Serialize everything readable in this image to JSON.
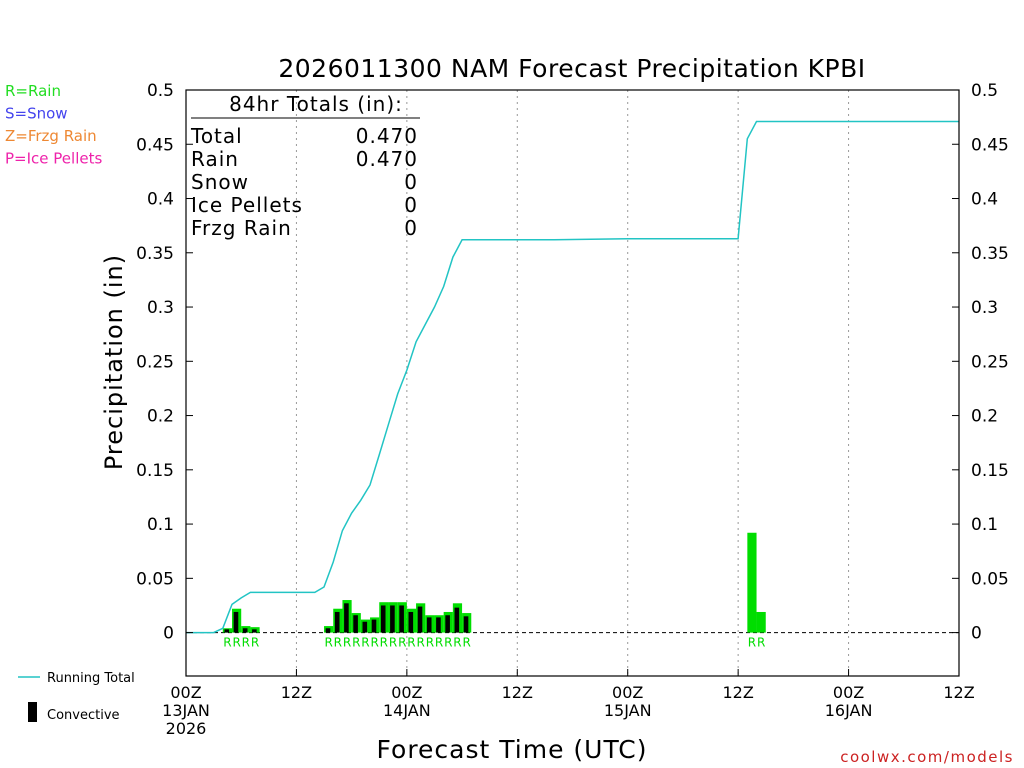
{
  "chart_data": {
    "type": "bar",
    "title": "2026011300 NAM Forecast Precipitation KPBI",
    "xlabel": "Forecast Time (UTC)",
    "ylabel": "Precipitation (in)",
    "ylim": [
      -0.04,
      0.5
    ],
    "y_ticks": [
      0,
      0.05,
      0.1,
      0.15,
      0.2,
      0.25,
      0.3,
      0.35,
      0.4,
      0.45,
      0.5
    ],
    "y_tick_labels": [
      "0",
      "0.05",
      "0.1",
      "0.15",
      "0.2",
      "0.25",
      "0.3",
      "0.35",
      "0.4",
      "0.45",
      "0.5"
    ],
    "x_range_hours": [
      0,
      84
    ],
    "x_ticks": [
      {
        "hour": 0,
        "lines": [
          "00Z",
          "13JAN",
          "2026"
        ]
      },
      {
        "hour": 12,
        "lines": [
          "12Z"
        ]
      },
      {
        "hour": 24,
        "lines": [
          "00Z",
          "14JAN"
        ]
      },
      {
        "hour": 36,
        "lines": [
          "12Z"
        ]
      },
      {
        "hour": 48,
        "lines": [
          "00Z",
          "15JAN"
        ]
      },
      {
        "hour": 60,
        "lines": [
          "12Z"
        ]
      },
      {
        "hour": 72,
        "lines": [
          "00Z",
          "16JAN"
        ]
      },
      {
        "hour": 84,
        "lines": [
          "12Z"
        ]
      }
    ],
    "grid_hours": [
      12,
      24,
      36,
      48,
      60,
      72
    ],
    "bar_hour_width": 1,
    "bars": [
      {
        "hour": 4,
        "value": 0.004,
        "convective": 0.003,
        "type": "R"
      },
      {
        "hour": 5,
        "value": 0.022,
        "convective": 0.019,
        "type": "R"
      },
      {
        "hour": 6,
        "value": 0.006,
        "convective": 0.004,
        "type": "R"
      },
      {
        "hour": 7,
        "value": 0.005,
        "convective": 0.003,
        "type": "R"
      },
      {
        "hour": 15,
        "value": 0.006,
        "convective": 0.004,
        "type": "R"
      },
      {
        "hour": 16,
        "value": 0.022,
        "convective": 0.019,
        "type": "R"
      },
      {
        "hour": 17,
        "value": 0.03,
        "convective": 0.027,
        "type": "R"
      },
      {
        "hour": 18,
        "value": 0.018,
        "convective": 0.016,
        "type": "R"
      },
      {
        "hour": 19,
        "value": 0.012,
        "convective": 0.01,
        "type": "R"
      },
      {
        "hour": 20,
        "value": 0.014,
        "convective": 0.012,
        "type": "R"
      },
      {
        "hour": 21,
        "value": 0.028,
        "convective": 0.025,
        "type": "R"
      },
      {
        "hour": 22,
        "value": 0.028,
        "convective": 0.025,
        "type": "R"
      },
      {
        "hour": 23,
        "value": 0.028,
        "convective": 0.025,
        "type": "R"
      },
      {
        "hour": 24,
        "value": 0.022,
        "convective": 0.019,
        "type": "R"
      },
      {
        "hour": 25,
        "value": 0.027,
        "convective": 0.024,
        "type": "R"
      },
      {
        "hour": 26,
        "value": 0.016,
        "convective": 0.014,
        "type": "R"
      },
      {
        "hour": 27,
        "value": 0.016,
        "convective": 0.014,
        "type": "R"
      },
      {
        "hour": 28,
        "value": 0.019,
        "convective": 0.016,
        "type": "R"
      },
      {
        "hour": 29,
        "value": 0.027,
        "convective": 0.023,
        "type": "R"
      },
      {
        "hour": 30,
        "value": 0.018,
        "convective": 0.015,
        "type": "R"
      },
      {
        "hour": 61,
        "value": 0.092,
        "convective": 0,
        "type": "R"
      },
      {
        "hour": 62,
        "value": 0.019,
        "convective": 0,
        "type": "R"
      }
    ],
    "running_total": {
      "hours": [
        0,
        1,
        2,
        3,
        4,
        5,
        6,
        7,
        8,
        9,
        10,
        11,
        12,
        13,
        14,
        15,
        16,
        17,
        18,
        19,
        20,
        21,
        22,
        23,
        24,
        25,
        26,
        27,
        28,
        29,
        30,
        31,
        32,
        40,
        48,
        56,
        60,
        61,
        62,
        63,
        64,
        72,
        84
      ],
      "values": [
        0,
        0,
        0,
        0,
        0.004,
        0.026,
        0.032,
        0.037,
        0.037,
        0.037,
        0.037,
        0.037,
        0.037,
        0.037,
        0.037,
        0.042,
        0.065,
        0.094,
        0.11,
        0.122,
        0.136,
        0.164,
        0.192,
        0.22,
        0.242,
        0.268,
        0.284,
        0.3,
        0.319,
        0.346,
        0.362,
        0.362,
        0.362,
        0.362,
        0.363,
        0.363,
        0.363,
        0.455,
        0.471,
        0.471,
        0.471,
        0.471,
        0.471
      ]
    },
    "ptype_marks": [
      {
        "hour": 4,
        "label": "R"
      },
      {
        "hour": 5,
        "label": "R"
      },
      {
        "hour": 6,
        "label": "R"
      },
      {
        "hour": 7,
        "label": "R"
      },
      {
        "hour": 15,
        "label": "R"
      },
      {
        "hour": 16,
        "label": "R"
      },
      {
        "hour": 17,
        "label": "R"
      },
      {
        "hour": 18,
        "label": "R"
      },
      {
        "hour": 19,
        "label": "R"
      },
      {
        "hour": 20,
        "label": "R"
      },
      {
        "hour": 21,
        "label": "R"
      },
      {
        "hour": 22,
        "label": "R"
      },
      {
        "hour": 23,
        "label": "R"
      },
      {
        "hour": 24,
        "label": "R"
      },
      {
        "hour": 25,
        "label": "R"
      },
      {
        "hour": 26,
        "label": "R"
      },
      {
        "hour": 27,
        "label": "R"
      },
      {
        "hour": 28,
        "label": "R"
      },
      {
        "hour": 29,
        "label": "R"
      },
      {
        "hour": 30,
        "label": "R"
      },
      {
        "hour": 61,
        "label": "R"
      },
      {
        "hour": 62,
        "label": "R"
      }
    ],
    "totals_box": {
      "heading": "84hr Totals (in):",
      "rows": [
        {
          "label": "Total",
          "value": "0.470"
        },
        {
          "label": "Rain",
          "value": "0.470"
        },
        {
          "label": "Snow",
          "value": "0"
        },
        {
          "label": "Ice Pellets",
          "value": "0"
        },
        {
          "label": "Frzg Rain",
          "value": "0"
        }
      ]
    },
    "ptype_legend": [
      {
        "text": "R=Rain",
        "color": "#22dd22"
      },
      {
        "text": "S=Snow",
        "color": "#4444ee"
      },
      {
        "text": "Z=Frzg Rain",
        "color": "#ee8833"
      },
      {
        "text": "P=Ice Pellets",
        "color": "#ee22aa"
      }
    ],
    "series_legend": [
      {
        "name": "Running Total",
        "color": "#22c4c4",
        "kind": "line"
      },
      {
        "name": "Convective",
        "color": "#000000",
        "kind": "bar"
      }
    ],
    "credit": "coolwx.com/models",
    "credit_color": "#cc2222",
    "bar_color": "#00dd00",
    "convective_color": "#000000",
    "running_total_color": "#22c4c4",
    "grid": true,
    "legend_position": "left"
  }
}
